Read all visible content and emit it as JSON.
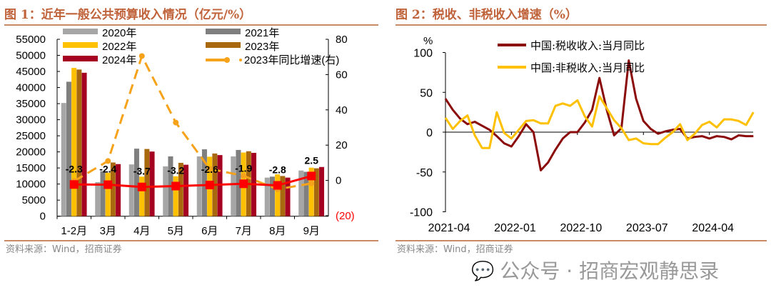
{
  "left": {
    "title": "图 1：近年一般公共预算收入情况（亿元/%）",
    "source": "资料来源：Wind，招商证券"
  },
  "right": {
    "title": "图 2：税收、非税收入增速（%）",
    "source": "资料来源：Wind，招商证券"
  },
  "watermark": "公众号 · 招商宏观静思录",
  "chart_data": [
    {
      "type": "bar",
      "categories": [
        "1-2月",
        "3月",
        "4月",
        "5月",
        "6月",
        "7月",
        "8月",
        "9月"
      ],
      "ylim": [
        0,
        55000
      ],
      "yticks": [
        "0",
        "5000",
        "10000",
        "15000",
        "20000",
        "25000",
        "30000",
        "35000",
        "40000",
        "45000",
        "50000",
        "55000"
      ],
      "y2lim": [
        -20,
        80
      ],
      "y2ticks": [
        "(20)",
        "0",
        "20",
        "40",
        "60",
        "80"
      ],
      "legend_placement": "top",
      "series": [
        {
          "name": "2020年",
          "color": "#a6a6a6",
          "values": [
            35200,
            10600,
            16100,
            15500,
            18600,
            18600,
            12000,
            14200
          ]
        },
        {
          "name": "2021年",
          "color": "#7f7f7f",
          "values": [
            41800,
            14000,
            21000,
            18600,
            20800,
            20600,
            12300,
            13800
          ]
        },
        {
          "name": "2022年",
          "color": "#ffc000",
          "values": [
            46100,
            13500,
            12300,
            12400,
            18500,
            19800,
            13000,
            15100
          ]
        },
        {
          "name": "2023年",
          "color": "#a8680e",
          "values": [
            45600,
            16700,
            20900,
            16600,
            19500,
            20200,
            12500,
            14900
          ]
        },
        {
          "name": "2024年",
          "color": "#a50021",
          "values": [
            44600,
            16200,
            20100,
            16000,
            19000,
            19700,
            12000,
            15300
          ]
        },
        {
          "name": "2023年同比增速(右)",
          "color": "#f7a21b",
          "axis": "right",
          "style": "dashed",
          "values": [
            -0.4,
            11,
            70.5,
            32.8,
            6.6,
            2.6,
            -5,
            -1.7
          ]
        },
        {
          "axis": "right",
          "color": "#ff0000",
          "style": "solid-square",
          "values": [
            -2.3,
            -2.4,
            -3.7,
            -3.2,
            -2.6,
            -1.9,
            -2.8,
            2.5
          ],
          "labels": [
            "-2.3",
            "-2.4",
            "-3.7",
            "-3.2",
            "-2.6",
            "-1.9",
            "-2.8",
            "2.5"
          ]
        }
      ]
    },
    {
      "type": "line",
      "ylabel": "%",
      "ylim": [
        -100,
        100
      ],
      "yticks": [
        "-100",
        "-50",
        "0",
        "50",
        "100"
      ],
      "xticks": [
        "2021-04",
        "2022-01",
        "2022-10",
        "2023-07",
        "2024-04"
      ],
      "x_start": "2021-04",
      "x_end": "2024-10",
      "legend_placement": "top",
      "series": [
        {
          "name": "中国:税收收入:当月同比",
          "color": "#8b0a0a",
          "values": [
            42,
            28,
            17,
            10,
            13,
            8,
            3,
            -5,
            -14,
            -18,
            -5,
            10,
            0,
            -48,
            -38,
            -22,
            -8,
            0,
            0,
            12,
            28,
            68,
            28,
            -4,
            5,
            90,
            42,
            14,
            4,
            -2,
            1,
            3,
            4,
            -8,
            -6,
            -5,
            -8,
            -5,
            -6,
            -9,
            -4,
            -5,
            -5
          ]
        },
        {
          "name": "中国:非税收入:当月同比",
          "color": "#ffc000",
          "values": [
            18,
            4,
            14,
            21,
            -4,
            -20,
            -20,
            25,
            -1,
            -8,
            3,
            14,
            15,
            11,
            11,
            33,
            36,
            33,
            40,
            20,
            7,
            45,
            30,
            15,
            5,
            -10,
            -8,
            -14,
            -15,
            -15,
            -7,
            0,
            10,
            -10,
            -2,
            9,
            13,
            6,
            16,
            16,
            14,
            9,
            25
          ]
        }
      ]
    }
  ]
}
